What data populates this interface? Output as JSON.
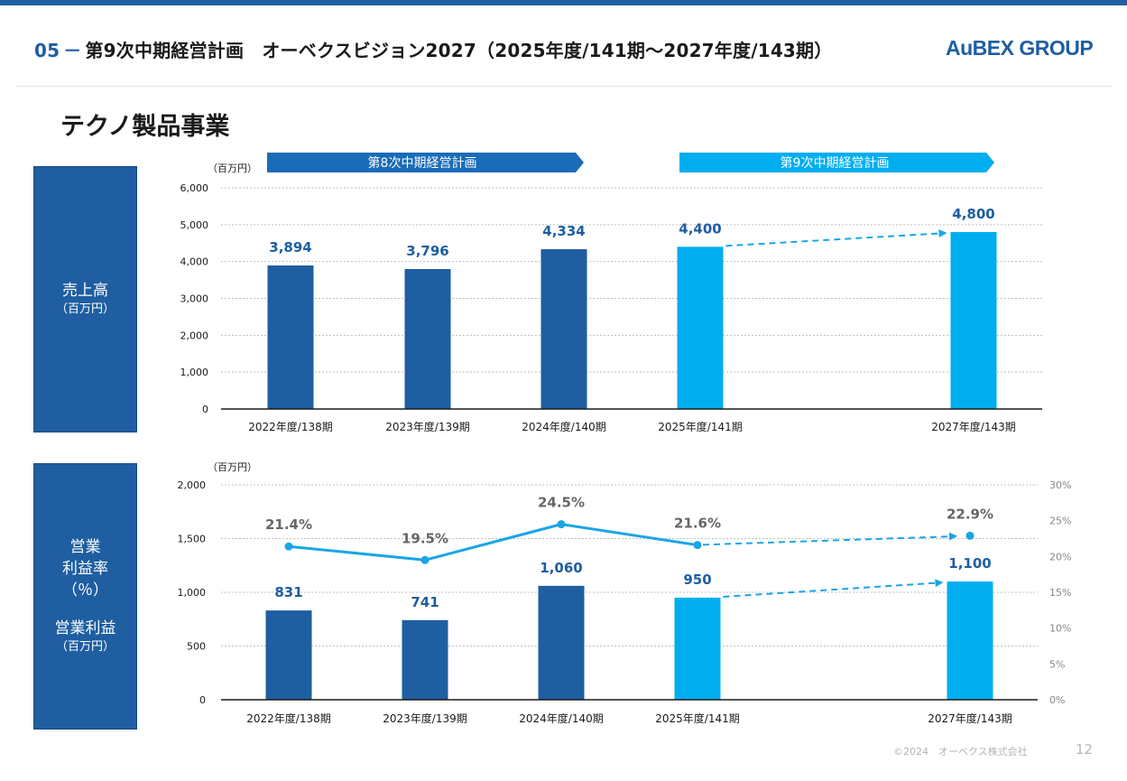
{
  "header": {
    "section_number": "05",
    "separator": "－",
    "title": "第9次中期経営計画　オーベクスビジョン2027（2025年度/141期～2027年度/143期）",
    "logo": "AuBEX GROUP"
  },
  "section_title": "テクノ製品事業",
  "plans": {
    "plan8": "第8次中期経営計画",
    "plan9": "第9次中期経営計画"
  },
  "sidebar": {
    "sales_label": "売上高",
    "sales_unit": "（百万円）",
    "rate_label_1": "営業",
    "rate_label_2": "利益率",
    "rate_label_3": "（％）",
    "profit_label": "営業利益",
    "profit_unit": "（百万円）"
  },
  "colors": {
    "dark_blue": "#1f5ea1",
    "light_blue": "#00aeef",
    "line": "#1aa5e6",
    "grid": "#bfbfbf"
  },
  "chart_data": [
    {
      "type": "bar",
      "title": "売上高",
      "unit": "（百万円）",
      "categories": [
        "2022年度/138期",
        "2023年度/139期",
        "2024年度/140期",
        "2025年度/141期",
        "2027年度/143期"
      ],
      "values": [
        3894,
        3796,
        4334,
        4400,
        4800
      ],
      "value_labels": [
        "3,894",
        "3,796",
        "4,334",
        "4,400",
        "4,800"
      ],
      "kind": [
        "actual",
        "actual",
        "actual",
        "plan",
        "plan"
      ],
      "ylim": [
        0,
        6000
      ],
      "yticks": [
        "0",
        "1,000",
        "2,000",
        "3,000",
        "4,000",
        "5,000",
        "6,000"
      ],
      "trend_arrow": {
        "from": "2025年度/141期",
        "to": "2027年度/143期",
        "style": "dashed"
      },
      "grid": true
    },
    {
      "type": "bar+line",
      "title": "営業利益 / 営業利益率",
      "unit": "（百万円）",
      "categories": [
        "2022年度/138期",
        "2023年度/139期",
        "2024年度/140期",
        "2025年度/141期",
        "2027年度/143期"
      ],
      "series": [
        {
          "name": "営業利益",
          "axis": "left",
          "values": [
            831,
            741,
            1060,
            950,
            1100
          ],
          "labels": [
            "831",
            "741",
            "1,060",
            "950",
            "1,100"
          ]
        },
        {
          "name": "営業利益率",
          "axis": "right",
          "values": [
            21.4,
            19.5,
            24.5,
            21.6,
            22.9
          ],
          "labels": [
            "21.4%",
            "19.5%",
            "24.5%",
            "21.6%",
            "22.9%"
          ]
        }
      ],
      "kind": [
        "actual",
        "actual",
        "actual",
        "plan",
        "plan"
      ],
      "ylim": [
        0,
        2000
      ],
      "yticks": [
        "0",
        "500",
        "1,000",
        "1,500",
        "2,000"
      ],
      "y2lim": [
        0,
        30
      ],
      "y2ticks": [
        "0%",
        "5%",
        "10%",
        "15%",
        "20%",
        "25%",
        "30%"
      ],
      "grid": true
    }
  ],
  "footer": {
    "copyright": "©2024　オーベクス株式会社",
    "page": "12"
  }
}
